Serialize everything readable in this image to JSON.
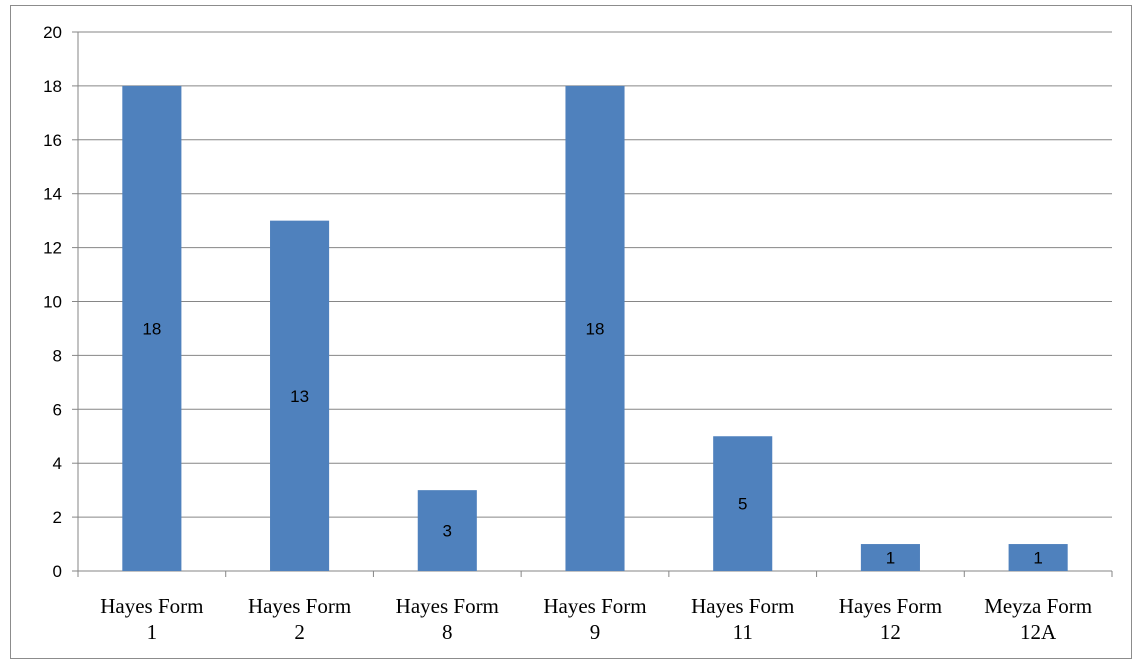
{
  "chart_data": {
    "type": "bar",
    "categories": [
      [
        "Hayes Form",
        "1"
      ],
      [
        "Hayes Form",
        "2"
      ],
      [
        "Hayes Form",
        "8"
      ],
      [
        "Hayes Form",
        "9"
      ],
      [
        "Hayes Form",
        "11"
      ],
      [
        "Hayes Form",
        "12"
      ],
      [
        "Meyza Form",
        "12A"
      ]
    ],
    "values": [
      18,
      13,
      3,
      18,
      5,
      1,
      1
    ],
    "data_labels": [
      "18",
      "13",
      "3",
      "18",
      "5",
      "1",
      "1"
    ],
    "title": "",
    "xlabel": "",
    "ylabel": "",
    "ylim": [
      0,
      20
    ],
    "yticks": [
      "0",
      "2",
      "4",
      "6",
      "8",
      "10",
      "12",
      "14",
      "16",
      "18",
      "20"
    ],
    "grid": true,
    "legend": "none",
    "colors": {
      "bar": "#4f81bd",
      "grid": "#868686",
      "axis": "#868686"
    }
  }
}
